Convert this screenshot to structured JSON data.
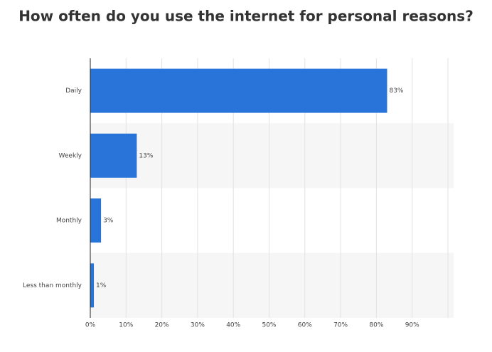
{
  "chart_data": {
    "type": "hbar",
    "title": "How often do you use the internet for personal reasons?",
    "categories": [
      "Daily",
      "Weekly",
      "Monthly",
      "Less than monthly"
    ],
    "values": [
      83,
      13,
      3,
      1
    ],
    "value_labels": [
      "83%",
      "13%",
      "3%",
      "1%"
    ],
    "color": "#2874d9",
    "xlim": [
      0,
      100
    ],
    "xticks": [
      {
        "value": 0,
        "label": "0%"
      },
      {
        "value": 10,
        "label": "10%"
      },
      {
        "value": 20,
        "label": "20%"
      },
      {
        "value": 30,
        "label": "30%"
      },
      {
        "value": 40,
        "label": "40%"
      },
      {
        "value": 50,
        "label": "50%"
      },
      {
        "value": 60,
        "label": "60%"
      },
      {
        "value": 70,
        "label": "70%"
      },
      {
        "value": 80,
        "label": "80%"
      },
      {
        "value": 90,
        "label": "90%"
      }
    ],
    "grid": true
  }
}
